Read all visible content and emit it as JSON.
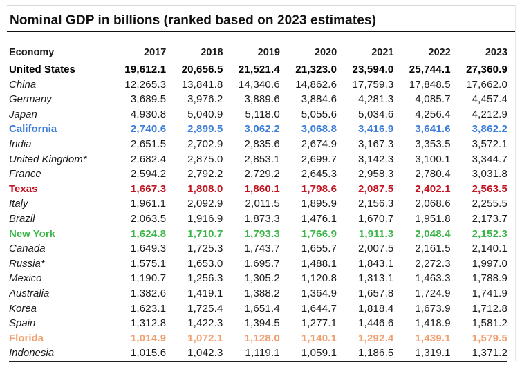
{
  "title": "Nominal GDP in billions (ranked based on 2023 estimates)",
  "header": {
    "economy": "Economy",
    "years": [
      "2017",
      "2018",
      "2019",
      "2020",
      "2021",
      "2022",
      "2023"
    ]
  },
  "colors": {
    "default": "#1a1a1a",
    "california": "#3b7dd8",
    "texas": "#c0121f",
    "new_york": "#3cb548",
    "florida": "#f0a070"
  },
  "rows": [
    {
      "name": "United States",
      "values": [
        "19,612.1",
        "20,656.5",
        "21,521.4",
        "21,323.0",
        "23,594.0",
        "25,744.1",
        "27,360.9"
      ],
      "kind": "us"
    },
    {
      "name": "China",
      "values": [
        "12,265.3",
        "13,841.8",
        "14,340.6",
        "14,862.6",
        "17,759.3",
        "17,848.5",
        "17,662.0"
      ],
      "kind": "country"
    },
    {
      "name": "Germany",
      "values": [
        "3,689.5",
        "3,976.2",
        "3,889.6",
        "3,884.6",
        "4,281.3",
        "4,085.7",
        "4,457.4"
      ],
      "kind": "country"
    },
    {
      "name": "Japan",
      "values": [
        "4,930.8",
        "5,040.9",
        "5,118.0",
        "5,055.6",
        "5,034.6",
        "4,256.4",
        "4,212.9"
      ],
      "kind": "country"
    },
    {
      "name": "California",
      "values": [
        "2,740.6",
        "2,899.5",
        "3,062.2",
        "3,068.8",
        "3,416.9",
        "3,641.6",
        "3,862.2"
      ],
      "kind": "state",
      "color": "#3b7dd8"
    },
    {
      "name": "India",
      "values": [
        "2,651.5",
        "2,702.9",
        "2,835.6",
        "2,674.9",
        "3,167.3",
        "3,353.5",
        "3,572.1"
      ],
      "kind": "country"
    },
    {
      "name": "United Kingdom*",
      "values": [
        "2,682.4",
        "2,875.0",
        "2,853.1",
        "2,699.7",
        "3,142.3",
        "3,100.1",
        "3,344.7"
      ],
      "kind": "country"
    },
    {
      "name": "France",
      "values": [
        "2,594.2",
        "2,792.2",
        "2,729.2",
        "2,645.3",
        "2,958.3",
        "2,780.4",
        "3,031.8"
      ],
      "kind": "country"
    },
    {
      "name": "Texas",
      "values": [
        "1,667.3",
        "1,808.0",
        "1,860.1",
        "1,798.6",
        "2,087.5",
        "2,402.1",
        "2,563.5"
      ],
      "kind": "state",
      "color": "#c0121f"
    },
    {
      "name": "Italy",
      "values": [
        "1,961.1",
        "2,092.9",
        "2,011.5",
        "1,895.9",
        "2,156.3",
        "2,068.6",
        "2,255.5"
      ],
      "kind": "country"
    },
    {
      "name": "Brazil",
      "values": [
        "2,063.5",
        "1,916.9",
        "1,873.3",
        "1,476.1",
        "1,670.7",
        "1,951.8",
        "2,173.7"
      ],
      "kind": "country"
    },
    {
      "name": "New York",
      "values": [
        "1,624.8",
        "1,710.7",
        "1,793.3",
        "1,766.9",
        "1,911.3",
        "2,048.4",
        "2,152.3"
      ],
      "kind": "state",
      "color": "#3cb548"
    },
    {
      "name": "Canada",
      "values": [
        "1,649.3",
        "1,725.3",
        "1,743.7",
        "1,655.7",
        "2,007.5",
        "2,161.5",
        "2,140.1"
      ],
      "kind": "country"
    },
    {
      "name": "Russia*",
      "values": [
        "1,575.1",
        "1,653.0",
        "1,695.7",
        "1,488.1",
        "1,843.1",
        "2,272.3",
        "1,997.0"
      ],
      "kind": "country"
    },
    {
      "name": "Mexico",
      "values": [
        "1,190.7",
        "1,256.3",
        "1,305.2",
        "1,120.8",
        "1,313.1",
        "1,463.3",
        "1,788.9"
      ],
      "kind": "country"
    },
    {
      "name": "Australia",
      "values": [
        "1,382.6",
        "1,419.1",
        "1,388.2",
        "1,364.9",
        "1,657.8",
        "1,724.9",
        "1,741.9"
      ],
      "kind": "country"
    },
    {
      "name": "Korea",
      "values": [
        "1,623.1",
        "1,725.4",
        "1,651.4",
        "1,644.7",
        "1,818.4",
        "1,673.9",
        "1,712.8"
      ],
      "kind": "country"
    },
    {
      "name": "Spain",
      "values": [
        "1,312.8",
        "1,422.3",
        "1,394.5",
        "1,277.1",
        "1,446.6",
        "1,418.9",
        "1,581.2"
      ],
      "kind": "country"
    },
    {
      "name": "Florida",
      "values": [
        "1,014.9",
        "1,072.1",
        "1,128.0",
        "1,140.1",
        "1,292.4",
        "1,439.1",
        "1,579.5"
      ],
      "kind": "state",
      "color": "#f0a070"
    },
    {
      "name": "Indonesia",
      "values": [
        "1,015.6",
        "1,042.3",
        "1,119.1",
        "1,059.1",
        "1,186.5",
        "1,319.1",
        "1,371.2"
      ],
      "kind": "country"
    }
  ]
}
